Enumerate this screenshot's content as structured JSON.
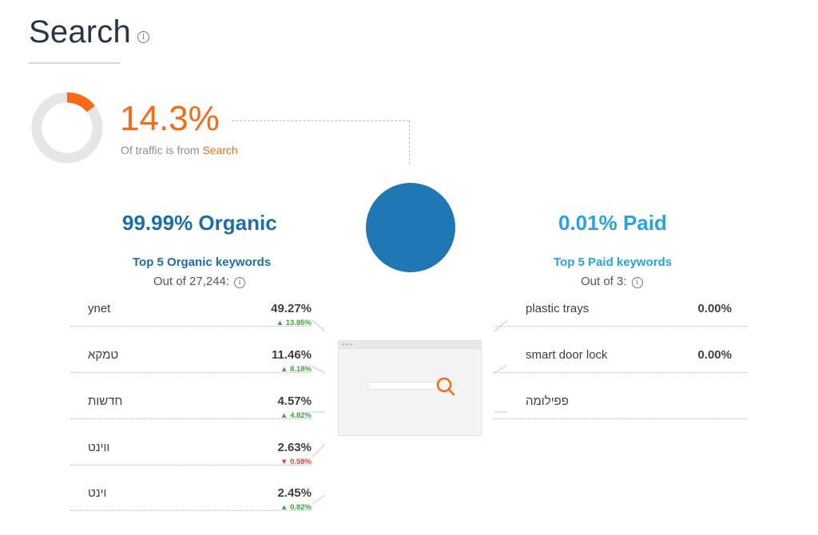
{
  "header": {
    "title": "Search",
    "info_icon": "info-icon"
  },
  "traffic": {
    "share_value": "14.3%",
    "caption_prefix": "Of traffic is from",
    "caption_highlight": "Search",
    "share_fraction": 0.143,
    "colors": {
      "accent": "#f96a17",
      "track": "#e6e6e6"
    }
  },
  "split": {
    "organic": {
      "pct": "99.99%",
      "label": "Organic",
      "keywords_title": "Top 5 Organic keywords",
      "out_of": "Out of 27,244:",
      "color": "#1d6ea7",
      "rows": [
        {
          "keyword": "ynet",
          "value": "49.27%",
          "change": "13.85%",
          "direction": "up"
        },
        {
          "keyword": "טמקא",
          "value": "11.46%",
          "change": "8.18%",
          "direction": "up"
        },
        {
          "keyword": "חדשות",
          "value": "4.57%",
          "change": "4.82%",
          "direction": "up"
        },
        {
          "keyword": "ווינט",
          "value": "2.63%",
          "change": "0.58%",
          "direction": "down"
        },
        {
          "keyword": "וינט",
          "value": "2.45%",
          "change": "0.82%",
          "direction": "up"
        }
      ]
    },
    "paid": {
      "pct": "0.01%",
      "label": "Paid",
      "keywords_title": "Top 5 Paid keywords",
      "out_of": "Out of 3:",
      "color": "#27a3df",
      "rows": [
        {
          "keyword": "plastic trays",
          "value": "0.00%"
        },
        {
          "keyword": "smart door lock",
          "value": "0.00%"
        },
        {
          "keyword": "פפילומה",
          "value": ""
        }
      ]
    },
    "center_circle_color": "#1f77b4"
  },
  "icons": {
    "up_arrow": "^",
    "down_arrow": "v"
  }
}
